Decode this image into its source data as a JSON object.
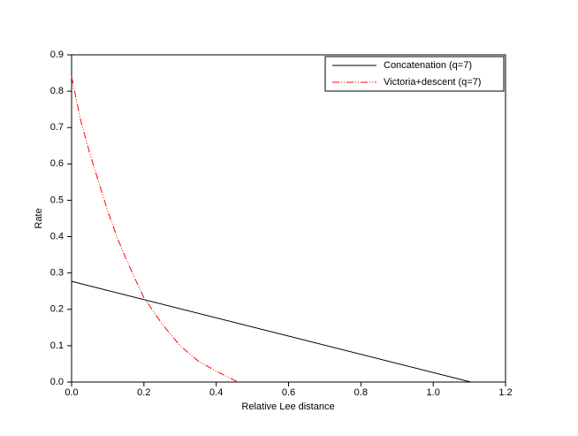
{
  "chart_data": {
    "type": "line",
    "xlabel": "Relative Lee distance",
    "ylabel": "Rate",
    "xlim": [
      0,
      1.2
    ],
    "ylim": [
      0,
      0.9
    ],
    "xticks": [
      {
        "value": 0,
        "label": "0.0"
      },
      0.2,
      0.4,
      0.6,
      0.8,
      {
        "value": 1,
        "label": "1.0"
      },
      1.2
    ],
    "yticks": [
      {
        "value": 0,
        "label": "0.0"
      },
      0.1,
      0.2,
      0.3,
      0.4,
      0.5,
      0.6,
      0.7,
      0.8,
      0.9
    ],
    "legend": "upper right",
    "series": [
      {
        "name": "Concatenation (q=7)",
        "color": "#000000",
        "linestyle": "solid",
        "x": [
          0,
          1.104
        ],
        "values": [
          0.277,
          0
        ]
      },
      {
        "name": "Victoria+descent (q=7)",
        "color": "#ff0000",
        "linestyle": "dashdotdot",
        "x": [
          0,
          0.025,
          0.05,
          0.075,
          0.1,
          0.125,
          0.15,
          0.175,
          0.2,
          0.25,
          0.3,
          0.35,
          0.4,
          0.45,
          0.46
        ],
        "values": [
          0.84,
          0.72,
          0.63,
          0.55,
          0.47,
          0.4,
          0.34,
          0.285,
          0.232,
          0.16,
          0.1,
          0.058,
          0.03,
          0.005,
          0
        ]
      }
    ]
  }
}
